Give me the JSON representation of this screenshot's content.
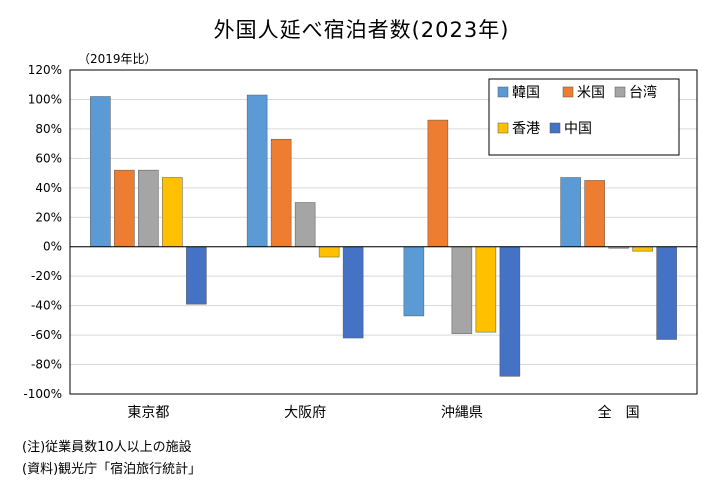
{
  "chart_data": {
    "type": "bar",
    "title": "外国人延べ宿泊者数(2023年)",
    "ylabel": "（2019年比）",
    "xlabel": "",
    "ylim": [
      -100,
      120
    ],
    "yticks": [
      120,
      100,
      80,
      60,
      40,
      20,
      0,
      -20,
      -40,
      -60,
      -80,
      -100
    ],
    "ytick_labels": [
      "120%",
      "100%",
      "80%",
      "60%",
      "40%",
      "20%",
      "0%",
      "-20%",
      "-40%",
      "-60%",
      "-80%",
      "-100%"
    ],
    "grid": true,
    "legend_position": "top-right",
    "categories": [
      "東京都",
      "大阪府",
      "沖縄県",
      "全　国"
    ],
    "series": [
      {
        "name": "韓国",
        "color": "#5b9bd5",
        "values": [
          102,
          103,
          -47,
          47
        ]
      },
      {
        "name": "米国",
        "color": "#ed7d31",
        "values": [
          52,
          73,
          86,
          45
        ]
      },
      {
        "name": "台湾",
        "color": "#a5a5a5",
        "values": [
          52,
          30,
          -59,
          -1
        ]
      },
      {
        "name": "香港",
        "color": "#ffc000",
        "values": [
          47,
          -7,
          -58,
          -3
        ]
      },
      {
        "name": "中国",
        "color": "#4472c4",
        "values": [
          -39,
          -62,
          -88,
          -63
        ]
      }
    ]
  },
  "notes": [
    "(注)従業員数10人以上の施設",
    "(資料)観光庁「宿泊旅行統計」"
  ]
}
